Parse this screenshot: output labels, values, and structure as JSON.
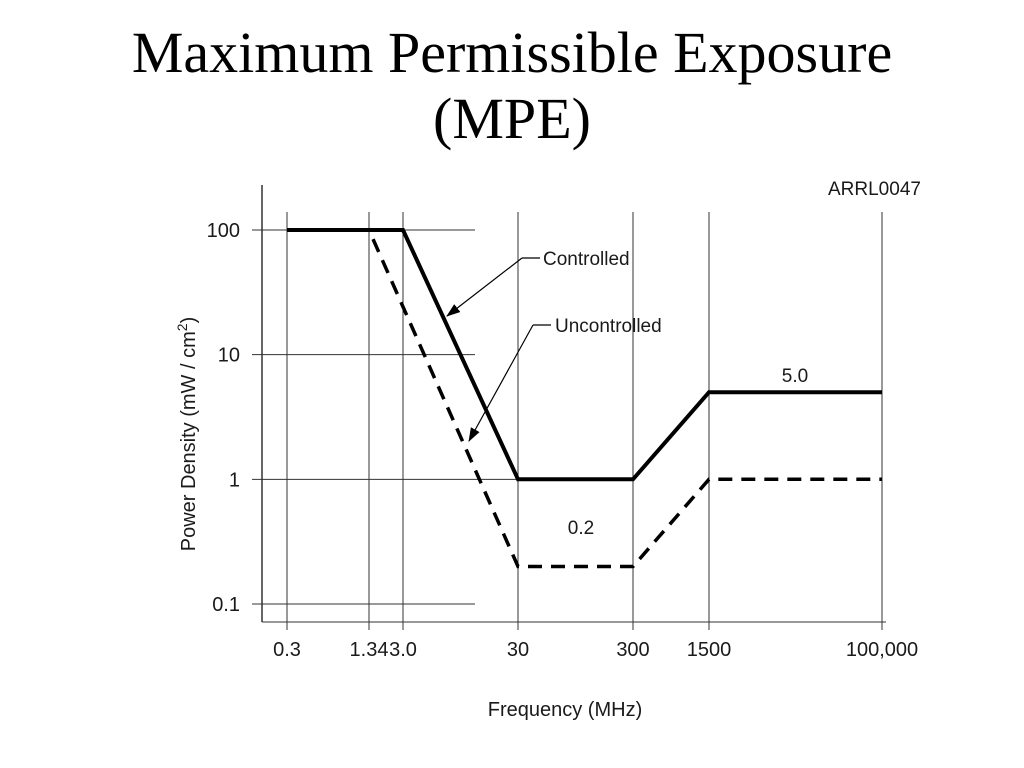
{
  "slide": {
    "title": "Maximum Permissible Exposure\n(MPE)"
  },
  "colors": {
    "line": "#000000",
    "grid": "#333333",
    "background": "#ffffff"
  },
  "chart_data": {
    "type": "line",
    "figure_id": "ARRL0047",
    "xlabel": "Frequency (MHz)",
    "ylabel": "Power Density (mW / cm",
    "ylabel_sup": "2",
    "ylabel_close": ")",
    "x_scale": "log",
    "y_scale": "log",
    "x_ticks": [
      {
        "value": 0.3,
        "label": "0.3"
      },
      {
        "value": 1.34,
        "label": "1.34"
      },
      {
        "value": 3.0,
        "label": "3.0"
      },
      {
        "value": 30,
        "label": "30"
      },
      {
        "value": 300,
        "label": "300"
      },
      {
        "value": 1500,
        "label": "1500"
      },
      {
        "value": 100000,
        "label": "100,000"
      }
    ],
    "y_ticks": [
      {
        "value": 0.1,
        "label": "0.1"
      },
      {
        "value": 1,
        "label": "1"
      },
      {
        "value": 10,
        "label": "10"
      },
      {
        "value": 100,
        "label": "100"
      }
    ],
    "grid": true,
    "series": [
      {
        "name": "Controlled",
        "style": "solid",
        "x": [
          0.3,
          3.0,
          30,
          300,
          1500,
          100000
        ],
        "y": [
          100,
          100,
          1,
          1,
          5,
          5
        ]
      },
      {
        "name": "Uncontrolled",
        "style": "dashed",
        "x": [
          0.3,
          1.34,
          30,
          300,
          1500,
          100000
        ],
        "y": [
          100,
          100,
          0.2,
          0.2,
          1,
          1
        ]
      }
    ],
    "annotations": [
      {
        "text": "Controlled",
        "points_to": "Controlled"
      },
      {
        "text": "Uncontrolled",
        "points_to": "Uncontrolled"
      },
      {
        "text": "5.0",
        "near": "Controlled"
      },
      {
        "text": "0.2",
        "near": "Uncontrolled"
      }
    ]
  }
}
